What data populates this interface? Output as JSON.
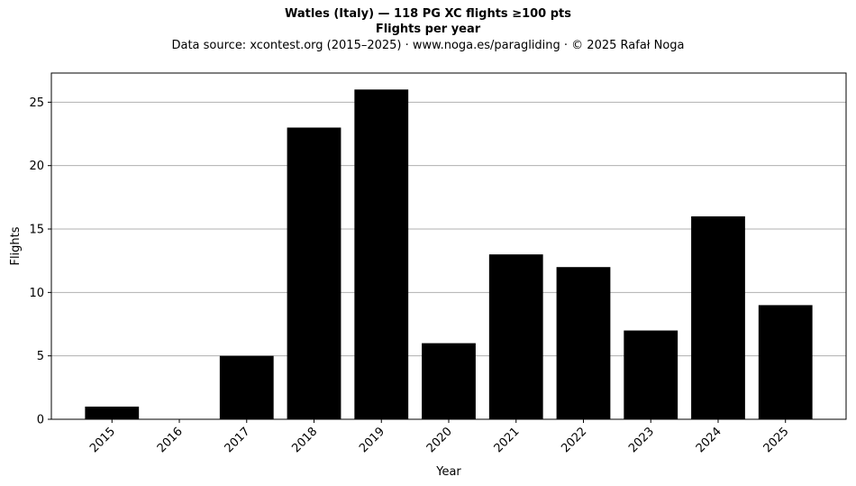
{
  "chart_data": {
    "type": "bar",
    "title": "Watles (Italy)  —  118 PG XC flights ≥100 pts",
    "title_line2": "Flights per year",
    "subtitle": "Data source: xcontest.org (2015–2025)  ·  www.noga.es/paragliding  ·  © 2025 Rafał Noga",
    "xlabel": "Year",
    "ylabel": "Flights",
    "categories": [
      "2015",
      "2016",
      "2017",
      "2018",
      "2019",
      "2020",
      "2021",
      "2022",
      "2023",
      "2024",
      "2025"
    ],
    "values": [
      1,
      0,
      5,
      23,
      26,
      6,
      13,
      12,
      7,
      16,
      9
    ],
    "ylim": [
      0,
      27.3
    ],
    "yticks": [
      0,
      5,
      10,
      15,
      20,
      25
    ],
    "grid": "horizontal",
    "bar_color": "#000000",
    "grid_color": "#b0b0b0"
  }
}
